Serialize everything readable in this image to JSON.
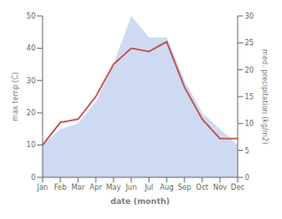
{
  "chart_data": {
    "type": "line",
    "categories": [
      "Jan",
      "Feb",
      "Mar",
      "Apr",
      "May",
      "Jun",
      "Jul",
      "Aug",
      "Sep",
      "Oct",
      "Nov",
      "Dec"
    ],
    "x_label": "date (month)",
    "y_label": "max temp (C)",
    "y2_label": "med. precipitation (kg/m2)",
    "ylim": [
      0,
      50
    ],
    "yticks": [
      0,
      10,
      20,
      30,
      40,
      50
    ],
    "y2lim": [
      0,
      30
    ],
    "y2ticks": [
      0,
      5,
      10,
      15,
      20,
      25,
      30
    ],
    "grid": false,
    "series": [
      {
        "type": "area",
        "axis": "y2",
        "color": "#c5d3ef",
        "values": [
          6,
          9,
          10,
          14,
          21,
          30,
          26,
          26,
          18,
          12,
          9,
          6
        ]
      },
      {
        "type": "line",
        "color": "#c0504d",
        "values": [
          10,
          17,
          18,
          25,
          35,
          40,
          39,
          42,
          28,
          18,
          12,
          12
        ]
      }
    ]
  }
}
